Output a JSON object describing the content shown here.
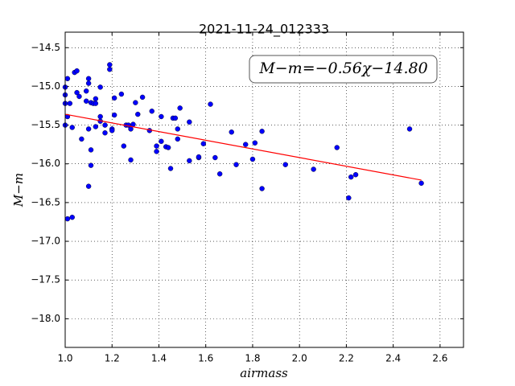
{
  "chart_data": {
    "type": "scatter",
    "title": "2021-11-24_012333",
    "xlabel": "airmass",
    "ylabel": "M−m",
    "annotation": "M−m=−0.56χ−14.80",
    "color": "#0000ff",
    "x": [
      1.0,
      1.0,
      1.0,
      1.0,
      1.01,
      1.01,
      1.02,
      1.01,
      1.03,
      1.03,
      1.04,
      1.05,
      1.05,
      1.06,
      1.07,
      1.09,
      1.09,
      1.1,
      1.1,
      1.1,
      1.1,
      1.11,
      1.11,
      1.11,
      1.12,
      1.13,
      1.13,
      1.13,
      1.15,
      1.15,
      1.15,
      1.17,
      1.17,
      1.19,
      1.19,
      1.2,
      1.2,
      1.21,
      1.21,
      1.24,
      1.25,
      1.26,
      1.27,
      1.28,
      1.28,
      1.29,
      1.3,
      1.31,
      1.33,
      1.36,
      1.37,
      1.39,
      1.39,
      1.41,
      1.41,
      1.43,
      1.44,
      1.45,
      1.46,
      1.47,
      1.48,
      1.48,
      1.49,
      1.53,
      1.53,
      1.57,
      1.57,
      1.59,
      1.62,
      1.64,
      1.66,
      1.71,
      1.73,
      1.77,
      1.8,
      1.81,
      1.84,
      1.84,
      1.94,
      2.06,
      2.16,
      2.21,
      2.22,
      2.24,
      2.47,
      2.52
    ],
    "values": [
      -15.11,
      -15.01,
      -15.22,
      -15.5,
      -15.39,
      -14.9,
      -15.22,
      -16.71,
      -16.69,
      -15.53,
      -14.82,
      -14.8,
      -15.08,
      -15.13,
      -15.68,
      -15.06,
      -15.19,
      -14.9,
      -14.96,
      -15.55,
      -16.29,
      -16.02,
      -15.82,
      -15.21,
      -15.22,
      -15.16,
      -15.22,
      -15.52,
      -15.45,
      -15.01,
      -15.39,
      -15.5,
      -15.6,
      -14.72,
      -14.78,
      -15.55,
      -15.57,
      -15.15,
      -15.37,
      -15.1,
      -15.77,
      -15.5,
      -15.5,
      -15.95,
      -15.55,
      -15.49,
      -15.21,
      -15.36,
      -15.14,
      -15.57,
      -15.32,
      -15.77,
      -15.84,
      -15.39,
      -15.71,
      -15.78,
      -15.79,
      -16.06,
      -15.41,
      -15.41,
      -15.55,
      -15.68,
      -15.28,
      -15.46,
      -15.96,
      -15.92,
      -15.91,
      -15.74,
      -15.23,
      -15.92,
      -16.13,
      -15.59,
      -16.01,
      -15.75,
      -15.94,
      -15.73,
      -15.58,
      -16.32,
      -16.01,
      -16.07,
      -15.79,
      -16.44,
      -16.17,
      -16.14,
      -15.55,
      -16.25
    ],
    "fit_line": {
      "color": "#ff0000",
      "x": [
        1.0,
        2.52
      ],
      "values": [
        -15.36,
        -16.21
      ]
    },
    "xlim": [
      1.0,
      2.7
    ],
    "ylim": [
      -18.37,
      -14.3
    ],
    "xticks": [
      {
        "value": 1,
        "label": "1.0"
      },
      1.2,
      1.4,
      1.6,
      1.8,
      {
        "value": 2,
        "label": "2.0"
      },
      2.2,
      2.4,
      2.6
    ],
    "yticks": [
      {
        "value": -14.5,
        "label": "−14.5"
      },
      {
        "value": -15,
        "label": "−15.0"
      },
      {
        "value": -15.5,
        "label": "−15.5"
      },
      {
        "value": -16,
        "label": "−16.0"
      },
      {
        "value": -16.5,
        "label": "−16.5"
      },
      {
        "value": -17,
        "label": "−17.0"
      },
      {
        "value": -17.5,
        "label": "−17.5"
      },
      {
        "value": -18,
        "label": "−18.0"
      }
    ],
    "grid": true
  }
}
